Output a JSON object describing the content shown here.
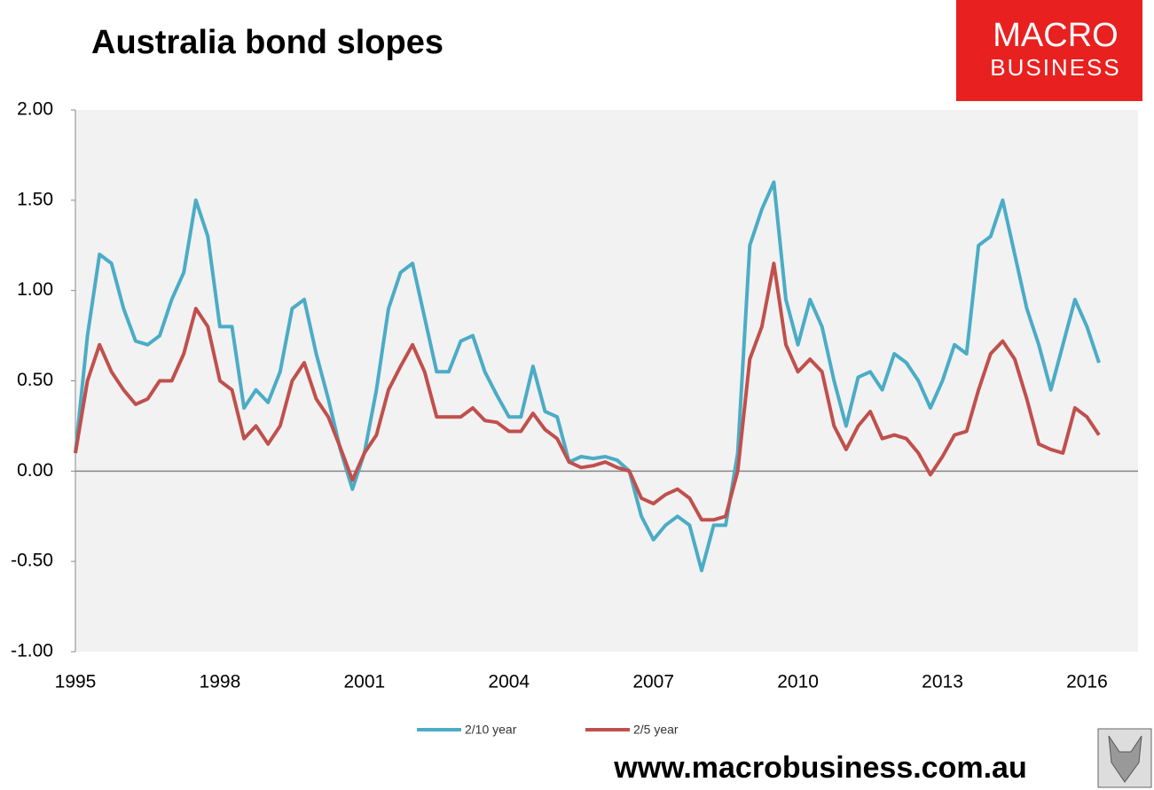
{
  "chart_data": {
    "type": "line",
    "title": "Australia bond slopes",
    "logo": [
      "MACRO",
      "BUSINESS"
    ],
    "footer": "www.macrobusiness.com.au",
    "x": [
      1995,
      1995.25,
      1995.5,
      1995.75,
      1996,
      1996.25,
      1996.5,
      1996.75,
      1997,
      1997.25,
      1997.5,
      1997.75,
      1998,
      1998.25,
      1998.5,
      1998.75,
      1999,
      1999.25,
      1999.5,
      1999.75,
      2000,
      2000.25,
      2000.5,
      2000.75,
      2001,
      2001.25,
      2001.5,
      2001.75,
      2002,
      2002.25,
      2002.5,
      2002.75,
      2003,
      2003.25,
      2003.5,
      2003.75,
      2004,
      2004.25,
      2004.5,
      2004.75,
      2005,
      2005.25,
      2005.5,
      2005.75,
      2006,
      2006.25,
      2006.5,
      2006.75,
      2007,
      2007.25,
      2007.5,
      2007.75,
      2008,
      2008.25,
      2008.5,
      2008.75,
      2009,
      2009.25,
      2009.5,
      2009.75,
      2010,
      2010.25,
      2010.5,
      2010.75,
      2011,
      2011.25,
      2011.5,
      2011.75,
      2012,
      2012.25,
      2012.5,
      2012.75,
      2013,
      2013.25,
      2013.5,
      2013.75,
      2014,
      2014.25,
      2014.5,
      2014.75,
      2015,
      2015.25,
      2015.5,
      2015.75,
      2016,
      2016.25
    ],
    "series": [
      {
        "name": "2/10 year",
        "color": "#4bacc6",
        "values": [
          0.1,
          0.75,
          1.2,
          1.15,
          0.9,
          0.72,
          0.7,
          0.75,
          0.95,
          1.1,
          1.5,
          1.3,
          0.8,
          0.8,
          0.35,
          0.45,
          0.38,
          0.55,
          0.9,
          0.95,
          0.65,
          0.4,
          0.12,
          -0.1,
          0.1,
          0.45,
          0.9,
          1.1,
          1.15,
          0.85,
          0.55,
          0.55,
          0.72,
          0.75,
          0.55,
          0.42,
          0.3,
          0.3,
          0.58,
          0.33,
          0.3,
          0.05,
          0.08,
          0.07,
          0.08,
          0.06,
          0.0,
          -0.25,
          -0.38,
          -0.3,
          -0.25,
          -0.3,
          -0.55,
          -0.3,
          -0.3,
          0.1,
          1.25,
          1.45,
          1.6,
          0.95,
          0.7,
          0.95,
          0.8,
          0.5,
          0.25,
          0.52,
          0.55,
          0.45,
          0.65,
          0.6,
          0.5,
          0.35,
          0.5,
          0.7,
          0.65,
          1.25,
          1.3,
          1.5,
          1.2,
          0.9,
          0.7,
          0.45,
          0.7,
          0.95,
          0.8,
          0.6
        ]
      },
      {
        "name": "2/5 year",
        "color": "#c0504d",
        "values": [
          0.1,
          0.5,
          0.7,
          0.55,
          0.45,
          0.37,
          0.4,
          0.5,
          0.5,
          0.65,
          0.9,
          0.8,
          0.5,
          0.45,
          0.18,
          0.25,
          0.15,
          0.25,
          0.5,
          0.6,
          0.4,
          0.3,
          0.13,
          -0.05,
          0.1,
          0.2,
          0.45,
          0.58,
          0.7,
          0.55,
          0.3,
          0.3,
          0.3,
          0.35,
          0.28,
          0.27,
          0.22,
          0.22,
          0.32,
          0.23,
          0.18,
          0.05,
          0.02,
          0.03,
          0.05,
          0.02,
          0.0,
          -0.15,
          -0.18,
          -0.13,
          -0.1,
          -0.15,
          -0.27,
          -0.27,
          -0.25,
          0.0,
          0.62,
          0.8,
          1.15,
          0.7,
          0.55,
          0.62,
          0.55,
          0.25,
          0.12,
          0.25,
          0.33,
          0.18,
          0.2,
          0.18,
          0.1,
          -0.02,
          0.08,
          0.2,
          0.22,
          0.45,
          0.65,
          0.72,
          0.62,
          0.4,
          0.15,
          0.12,
          0.1,
          0.35,
          0.3,
          0.2
        ]
      }
    ],
    "xlim": [
      1995,
      2017.06
    ],
    "xticks": [
      1995,
      1998,
      2001,
      2004,
      2007,
      2010,
      2013,
      2016
    ],
    "ylim": [
      -1,
      2
    ],
    "yticks": [
      {
        "value": -1,
        "label": "-1.00"
      },
      {
        "value": -0.5,
        "label": "-0.50"
      },
      {
        "value": 0,
        "label": "0.00"
      },
      {
        "value": 0.5,
        "label": "0.50"
      },
      {
        "value": 1,
        "label": "1.00"
      },
      {
        "value": 1.5,
        "label": "1.50"
      },
      {
        "value": 2,
        "label": "2.00"
      }
    ],
    "zero_line": true,
    "legend": "bottom"
  }
}
